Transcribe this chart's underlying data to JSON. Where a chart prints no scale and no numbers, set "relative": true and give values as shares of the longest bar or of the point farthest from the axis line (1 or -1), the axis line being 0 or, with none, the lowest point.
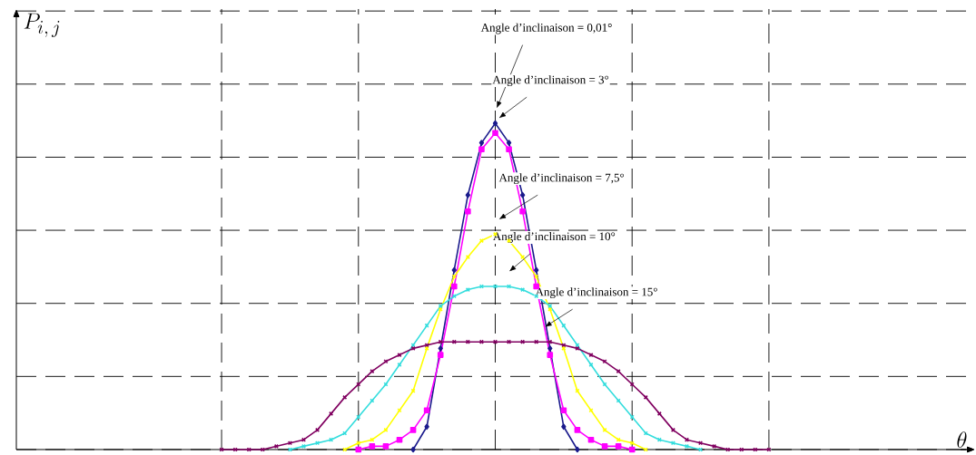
{
  "chart_data": {
    "type": "line",
    "relative": true,
    "categories": [
      null,
      null,
      null,
      null,
      null,
      null,
      null,
      null,
      null,
      null,
      null,
      null,
      null,
      null,
      null,
      null,
      null,
      null,
      null,
      null,
      null,
      null,
      null,
      null,
      null,
      null,
      null,
      null,
      null,
      null,
      null,
      null,
      null,
      null,
      null,
      null,
      null,
      null,
      null,
      null,
      null
    ],
    "grid": true,
    "line_style": "solid",
    "series": [
      {
        "color": "#1a1a8c",
        "marker": "diamond",
        "values": [
          null,
          null,
          null,
          null,
          null,
          null,
          null,
          null,
          null,
          null,
          null,
          null,
          null,
          null,
          0,
          0.07,
          0.31,
          0.55,
          0.78,
          0.94,
          1.0,
          0.94,
          0.78,
          0.55,
          0.31,
          0.07,
          0,
          null,
          null,
          null,
          null,
          null,
          null,
          null,
          null,
          null,
          null,
          null,
          null,
          null,
          null
        ]
      },
      {
        "color": "#ff00ff",
        "marker": "square",
        "values": [
          null,
          null,
          null,
          null,
          null,
          null,
          null,
          null,
          null,
          null,
          0,
          0.01,
          0.01,
          0.03,
          0.06,
          0.12,
          0.29,
          0.5,
          0.73,
          0.92,
          0.97,
          0.92,
          0.73,
          0.5,
          0.29,
          0.12,
          0.06,
          0.03,
          0.01,
          0.01,
          0,
          null,
          null,
          null,
          null,
          null,
          null,
          null,
          null,
          null,
          null
        ]
      },
      {
        "color": "#ffff00",
        "marker": "cross",
        "values": [
          null,
          null,
          null,
          null,
          null,
          null,
          null,
          null,
          null,
          0,
          0.02,
          0.03,
          0.06,
          0.12,
          0.18,
          0.31,
          0.43,
          0.53,
          0.59,
          0.64,
          0.66,
          0.64,
          0.59,
          0.53,
          0.43,
          0.31,
          0.18,
          0.12,
          0.06,
          0.03,
          0.02,
          0,
          null,
          null,
          null,
          null,
          null,
          null,
          null,
          null,
          null
        ]
      },
      {
        "color": "#33dddd",
        "marker": "cross",
        "values": [
          null,
          null,
          null,
          null,
          null,
          0,
          0.01,
          0.02,
          0.03,
          0.05,
          0.1,
          0.15,
          0.2,
          0.26,
          0.32,
          0.38,
          0.44,
          0.47,
          0.49,
          0.5,
          0.5,
          0.5,
          0.49,
          0.47,
          0.44,
          0.38,
          0.32,
          0.26,
          0.2,
          0.15,
          0.1,
          0.05,
          0.03,
          0.02,
          0.01,
          0,
          null,
          null,
          null,
          null,
          null
        ]
      },
      {
        "color": "#800060",
        "marker": "cross",
        "values": [
          0,
          0,
          0,
          0,
          0.01,
          0.02,
          0.03,
          0.06,
          0.11,
          0.16,
          0.2,
          0.24,
          0.27,
          0.29,
          0.31,
          0.32,
          0.33,
          0.33,
          0.33,
          0.33,
          0.33,
          0.33,
          0.33,
          0.33,
          0.33,
          0.32,
          0.31,
          0.29,
          0.27,
          0.24,
          0.2,
          0.16,
          0.11,
          0.06,
          0.03,
          0.02,
          0.01,
          0,
          0,
          0,
          0
        ]
      }
    ],
    "annotations": [
      "Angle d’inclinaison = 0,01°",
      "Angle d’inclinaison = 3°",
      "Angle d’inclinaison = 7,5°",
      "Angle d’inclinaison = 10°",
      "Angle d’inclinaison = 15°",
      "\\theta",
      "P_{i,\\, j}"
    ]
  }
}
